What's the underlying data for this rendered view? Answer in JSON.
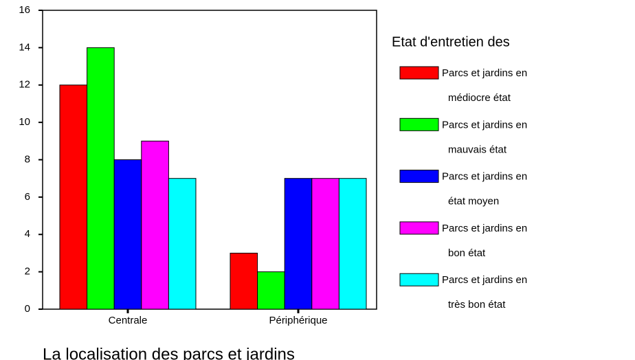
{
  "chart_data": {
    "type": "bar",
    "x_label": "La localisation des parcs et jardins",
    "legend_title": "Etat d'entretien des",
    "categories": [
      "Centrale",
      "Périphérique"
    ],
    "series": [
      {
        "name": "Parcs et jardins en médiocre état",
        "color": "#ff0000",
        "values": [
          12,
          3
        ]
      },
      {
        "name": "Parcs et jardins en mauvais état",
        "color": "#00ff00",
        "values": [
          14,
          2
        ]
      },
      {
        "name": "Parcs et jardins en état moyen",
        "color": "#0000ff",
        "values": [
          8,
          7
        ]
      },
      {
        "name": "Parcs et jardins en bon état",
        "color": "#ff00ff",
        "values": [
          9,
          7
        ]
      },
      {
        "name": "Parcs et jardins en très bon état",
        "color": "#00ffff",
        "values": [
          7,
          7
        ]
      }
    ],
    "ylim": [
      0,
      16
    ],
    "yticks": [
      0,
      2,
      4,
      6,
      8,
      10,
      12,
      14,
      16
    ],
    "legend": "right"
  }
}
